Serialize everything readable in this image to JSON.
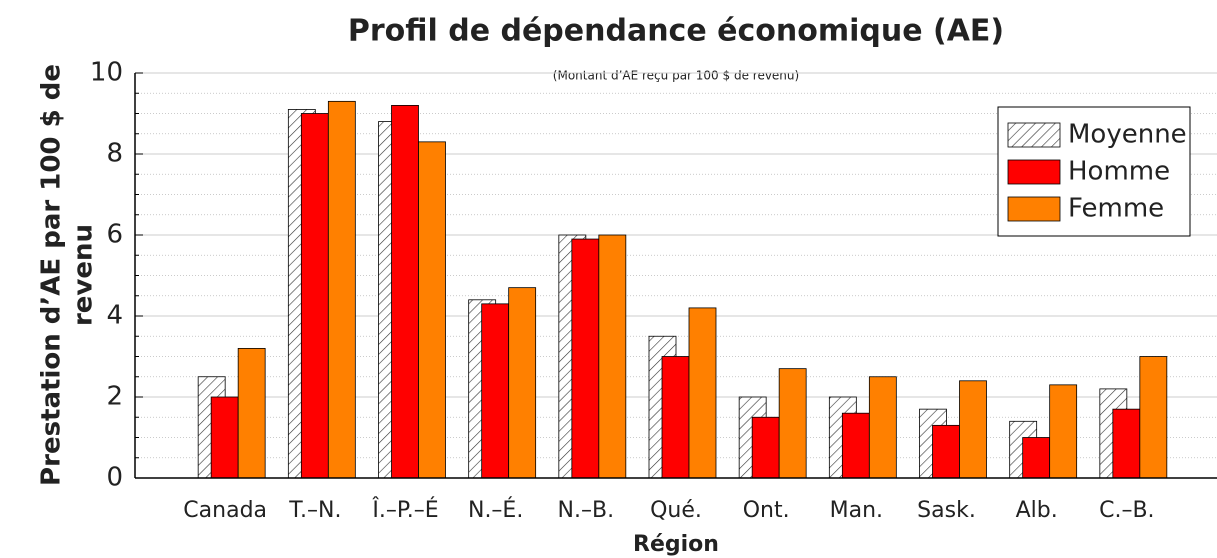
{
  "chart_data": {
    "type": "bar",
    "title": "Profil de dépendance économique (AE)",
    "subtitle": "(Montant d’AE reçu par 100 $ de revenu)",
    "xlabel": "Région",
    "ylabel": [
      "Prestation d’AE par 100 $ de",
      "revenu"
    ],
    "categories": [
      "Canada",
      "T.–N.",
      "Î.–P.–É",
      "N.–É.",
      "N.–B.",
      "Qué.",
      "Ont.",
      "Man.",
      "Sask.",
      "Alb.",
      "C.–B."
    ],
    "series": [
      {
        "name": "Moyenne",
        "color": "hatch",
        "values": [
          2.5,
          9.1,
          8.8,
          4.4,
          6.0,
          3.5,
          2.0,
          2.0,
          1.7,
          1.4,
          2.2
        ]
      },
      {
        "name": "Homme",
        "color": "#ff0000",
        "values": [
          2.0,
          9.0,
          9.2,
          4.3,
          5.9,
          3.0,
          1.5,
          1.6,
          1.3,
          1.0,
          1.7
        ]
      },
      {
        "name": "Femme",
        "color": "#ff8000",
        "values": [
          3.2,
          9.3,
          8.3,
          4.7,
          6.0,
          4.2,
          2.7,
          2.5,
          2.4,
          2.3,
          3.0
        ]
      }
    ],
    "ylim": [
      0,
      10
    ],
    "yticks": [
      0,
      2,
      4,
      6,
      8,
      10
    ],
    "yminorticks": [
      0.5,
      1,
      1.5,
      2.5,
      3,
      3.5,
      4.5,
      5,
      5.5,
      6.5,
      7,
      7.5,
      8.5,
      9,
      9.5
    ],
    "grid": true,
    "legend": "upper right"
  }
}
